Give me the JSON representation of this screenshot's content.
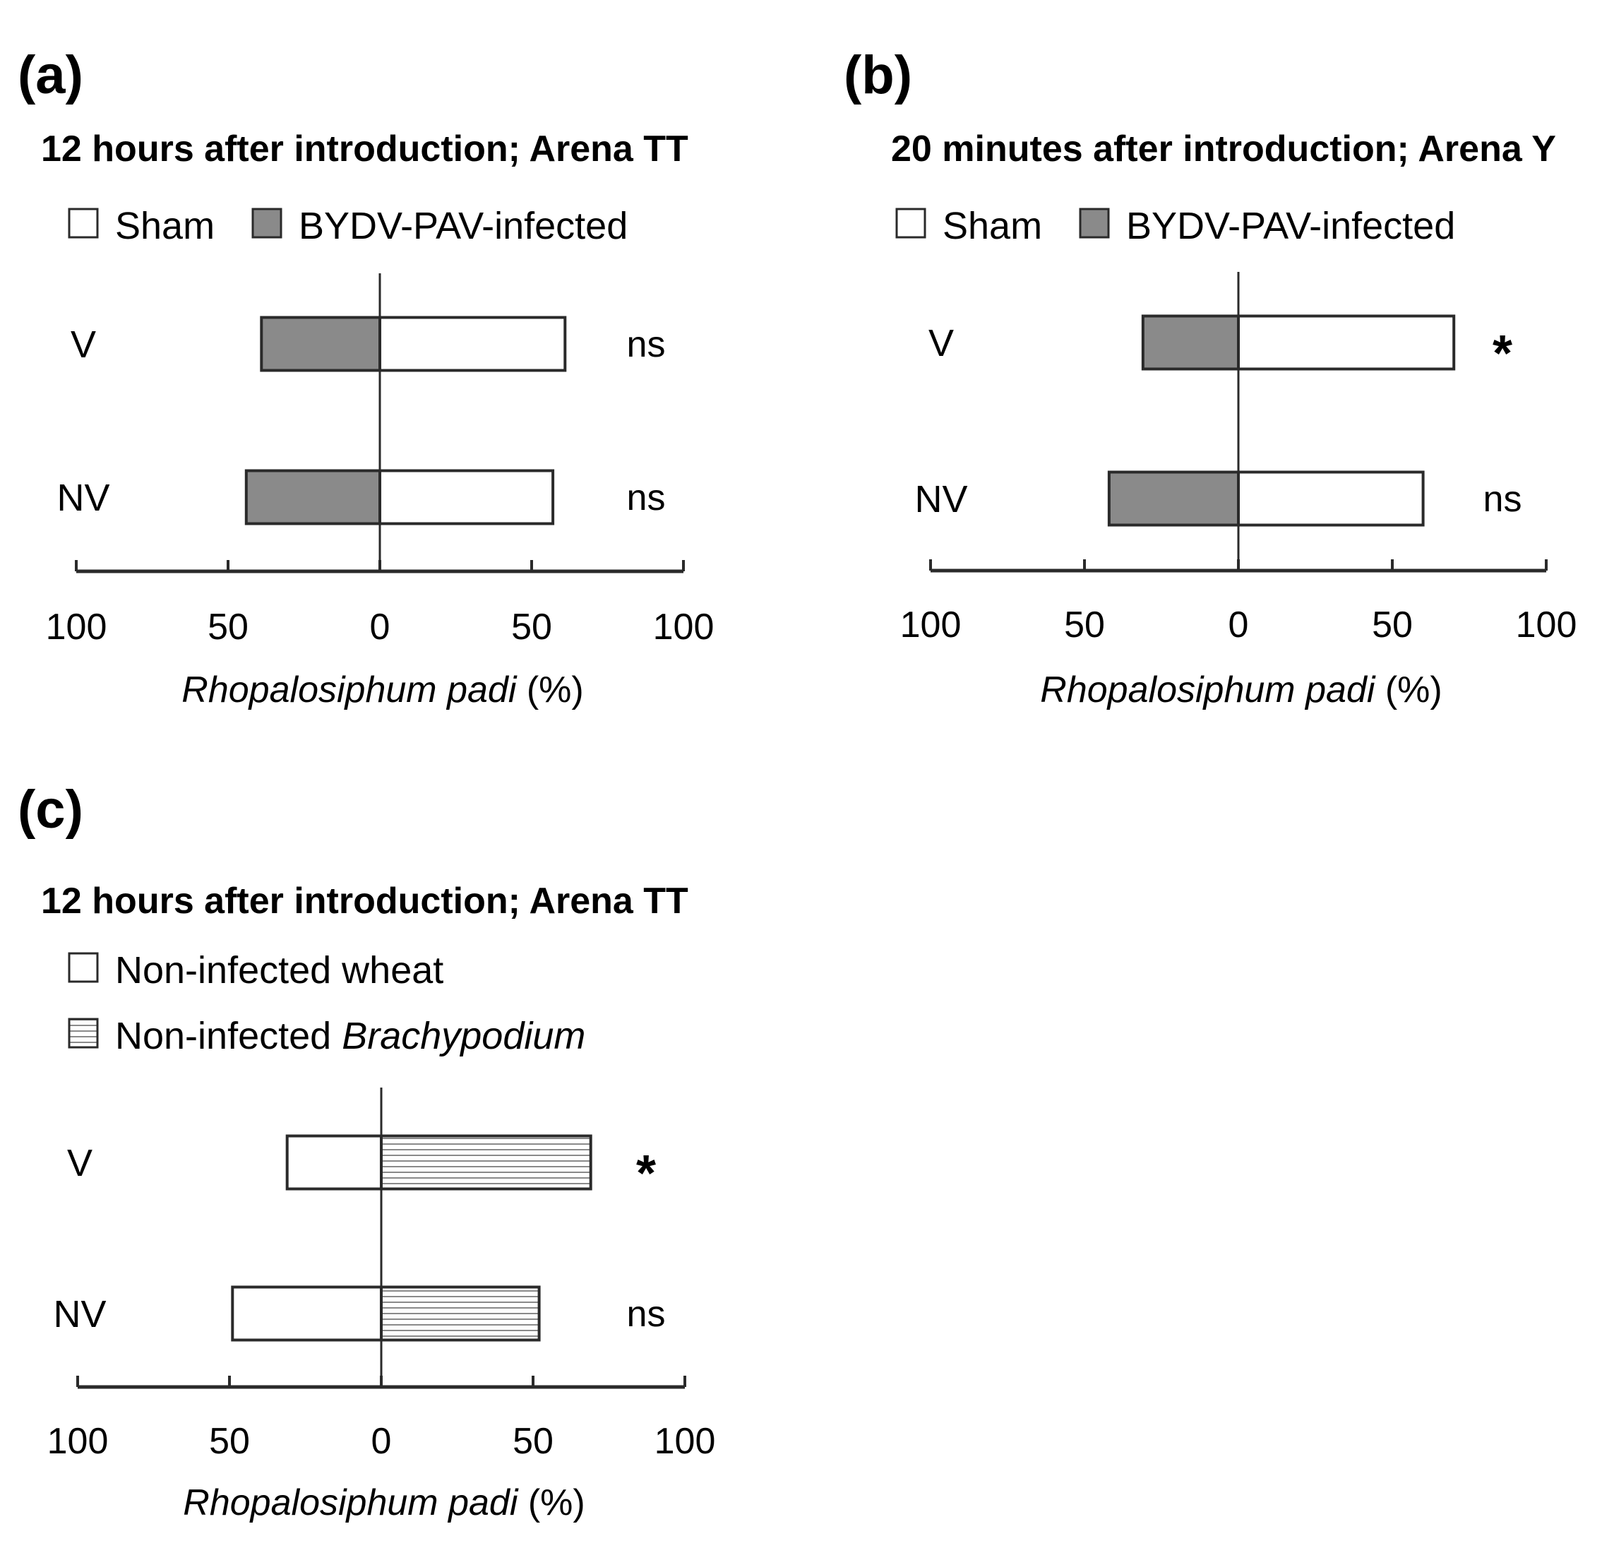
{
  "figure": {
    "panels": [
      {
        "label": "(a)",
        "title": "12 hours after introduction; Arena TT",
        "legend": [
          {
            "text": "Sham",
            "italic": "",
            "fill": "white"
          },
          {
            "text": "BYDV-PAV-infected",
            "italic": "",
            "fill": "gray"
          }
        ]
      },
      {
        "label": "(b)",
        "title": "20 minutes after introduction; Arena Y",
        "legend": [
          {
            "text": "Sham",
            "italic": "",
            "fill": "white"
          },
          {
            "text": "BYDV-PAV-infected",
            "italic": "",
            "fill": "gray"
          }
        ]
      },
      {
        "label": "(c)",
        "title": "12 hours after introduction; Arena TT",
        "legend": [
          {
            "text": "Non-infected wheat",
            "italic": "",
            "fill": "white"
          },
          {
            "text": "Non-infected ",
            "italic": "Brachypodium",
            "fill": "hatch"
          }
        ]
      }
    ]
  },
  "colors": {
    "gray_fill": "#8a8a8a",
    "white_fill": "#ffffff",
    "stroke": "#2a2a2a",
    "hatch_line": "#8a8a8a"
  },
  "chart_data": [
    {
      "type": "bar",
      "orientation": "horizontal-diverging",
      "categories": [
        "V",
        "NV"
      ],
      "series": [
        {
          "name": "BYDV-PAV-infected",
          "side": "left",
          "fill": "gray",
          "values": [
            39,
            44
          ]
        },
        {
          "name": "Sham",
          "side": "right",
          "fill": "white",
          "values": [
            61,
            57
          ]
        }
      ],
      "significance": [
        "ns",
        "ns"
      ],
      "xticks": [
        "100",
        "50",
        "0",
        "50",
        "100"
      ],
      "xlim": [
        -100,
        100
      ],
      "xlabel_italic": "Rhopalosiphum padi",
      "xlabel_rest": " (%)"
    },
    {
      "type": "bar",
      "orientation": "horizontal-diverging",
      "categories": [
        "V",
        "NV"
      ],
      "series": [
        {
          "name": "BYDV-PAV-infected",
          "side": "left",
          "fill": "gray",
          "values": [
            31,
            42
          ]
        },
        {
          "name": "Sham",
          "side": "right",
          "fill": "white",
          "values": [
            70,
            60
          ]
        }
      ],
      "significance": [
        "*",
        "ns"
      ],
      "xticks": [
        "100",
        "50",
        "0",
        "50",
        "100"
      ],
      "xlim": [
        -100,
        100
      ],
      "xlabel_italic": "Rhopalosiphum padi",
      "xlabel_rest": " (%)"
    },
    {
      "type": "bar",
      "orientation": "horizontal-diverging",
      "categories": [
        "V",
        "NV"
      ],
      "series": [
        {
          "name": "Non-infected wheat",
          "side": "left",
          "fill": "white",
          "values": [
            31,
            49
          ]
        },
        {
          "name": "Non-infected Brachypodium",
          "side": "right",
          "fill": "hatch",
          "values": [
            69,
            52
          ]
        }
      ],
      "significance": [
        "*",
        "ns"
      ],
      "xticks": [
        "100",
        "50",
        "0",
        "50",
        "100"
      ],
      "xlim": [
        -100,
        100
      ],
      "xlabel_italic": "Rhopalosiphum padi",
      "xlabel_rest": " (%)"
    }
  ]
}
